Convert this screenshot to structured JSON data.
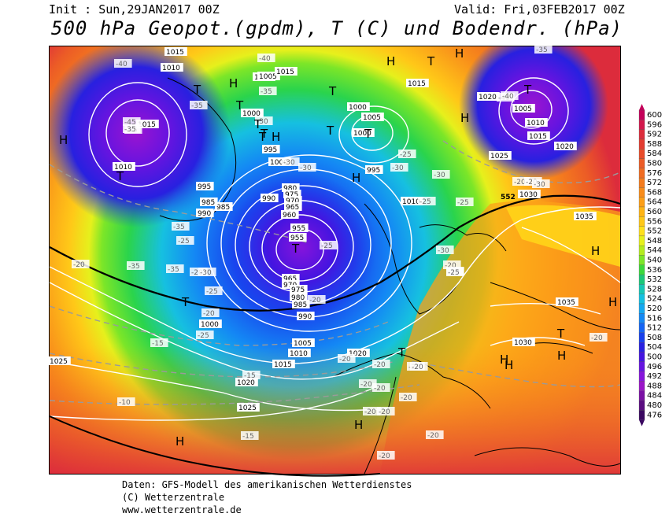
{
  "header": {
    "init": "Init : Sun,29JAN2017 00Z",
    "valid": "Valid: Fri,03FEB2017 00Z",
    "title": "500 hPa Geopot.(gpdm), T (C) und Bodendr. (hPa)"
  },
  "footer": {
    "line1": "Daten: GFS-Modell des amerikanischen Wetterdienstes",
    "line2": "(C) Wetterzentrale",
    "line3": "www.wetterzentrale.de"
  },
  "legend": {
    "values": [
      600,
      596,
      592,
      588,
      584,
      580,
      576,
      572,
      568,
      564,
      560,
      556,
      552,
      548,
      544,
      540,
      536,
      532,
      528,
      524,
      520,
      516,
      512,
      508,
      504,
      500,
      496,
      492,
      488,
      484,
      480,
      476
    ],
    "colors": [
      "#c4005a",
      "#d2184c",
      "#dc2c3c",
      "#e23c30",
      "#e84c2a",
      "#ec5c26",
      "#f06c22",
      "#f47c1e",
      "#f88c1a",
      "#fc9e16",
      "#ffb414",
      "#ffc818",
      "#ffe01c",
      "#e6f01c",
      "#b4ec1e",
      "#7ce628",
      "#3cd83c",
      "#1cc878",
      "#16c8b4",
      "#14c0e0",
      "#14a8f0",
      "#1488f4",
      "#1464f4",
      "#1840ec",
      "#2820e0",
      "#4414e0",
      "#6614e0",
      "#8614dc",
      "#9a14c8",
      "#7a10a4",
      "#5a0c80",
      "#3a0860"
    ]
  },
  "map": {
    "pressure_labels": [
      "1015",
      "1010",
      "1005",
      "1000",
      "995",
      "990",
      "985",
      "980",
      "975",
      "970",
      "965",
      "960",
      "955",
      "1020",
      "1025",
      "1030",
      "1035"
    ],
    "temperature_labels": [
      "-40",
      "-35",
      "-30",
      "-25",
      "-20",
      "-15",
      "-10",
      "-45"
    ],
    "height_labels": [
      "552"
    ],
    "centers": [
      {
        "type": "T",
        "label": "T"
      },
      {
        "type": "H",
        "label": "H"
      }
    ]
  }
}
